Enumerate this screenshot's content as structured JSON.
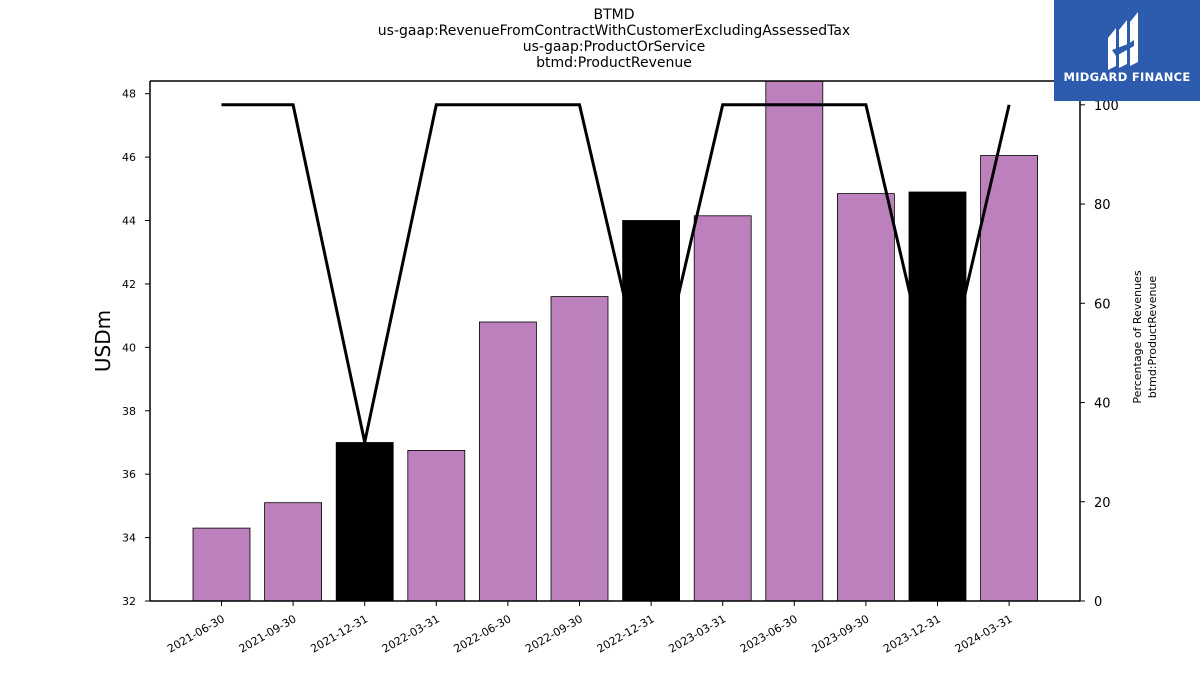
{
  "title_lines": [
    "BTMD",
    "us-gaap:RevenueFromContractWithCustomerExcludingAssessedTax",
    "us-gaap:ProductOrService",
    "btmd:ProductRevenue"
  ],
  "logo": {
    "text": "MIDGARD FINANCE",
    "background": "#2d5cae",
    "icon": "midgard-m-logo-icon"
  },
  "chart_data": {
    "type": "bar",
    "categories": [
      "2021-06-30",
      "2021-09-30",
      "2021-12-31",
      "2022-03-31",
      "2022-06-30",
      "2022-09-30",
      "2022-12-31",
      "2023-03-31",
      "2023-06-30",
      "2023-09-30",
      "2023-12-31",
      "2024-03-31"
    ],
    "series": [
      {
        "type": "bar",
        "values": [
          34.3,
          35.1,
          37.0,
          36.75,
          40.8,
          41.6,
          44.0,
          44.15,
          48.5,
          44.85,
          44.9,
          46.05
        ],
        "colors": [
          "#bc80bd",
          "#bc80bd",
          "#000000",
          "#bc80bd",
          "#bc80bd",
          "#bc80bd",
          "#000000",
          "#bc80bd",
          "#bc80bd",
          "#bc80bd",
          "#000000",
          "#bc80bd"
        ],
        "axis": "left"
      },
      {
        "type": "line",
        "values": [
          100,
          100,
          32,
          100,
          100,
          100,
          38,
          100,
          100,
          100,
          38,
          100
        ],
        "color": "#000000",
        "axis": "right"
      }
    ],
    "ylabel": "USDm",
    "ylabel_right": [
      "Percentage of Revenues",
      "btmd:ProductRevenue"
    ],
    "ylim": [
      32,
      48.4
    ],
    "ylim_right": [
      0,
      104.8
    ],
    "yticks": [
      "32",
      "34",
      "36",
      "38",
      "40",
      "42",
      "44",
      "46",
      "48"
    ],
    "yticks_right": [
      "0",
      "20",
      "40",
      "60",
      "80",
      "100"
    ],
    "grid": false
  }
}
